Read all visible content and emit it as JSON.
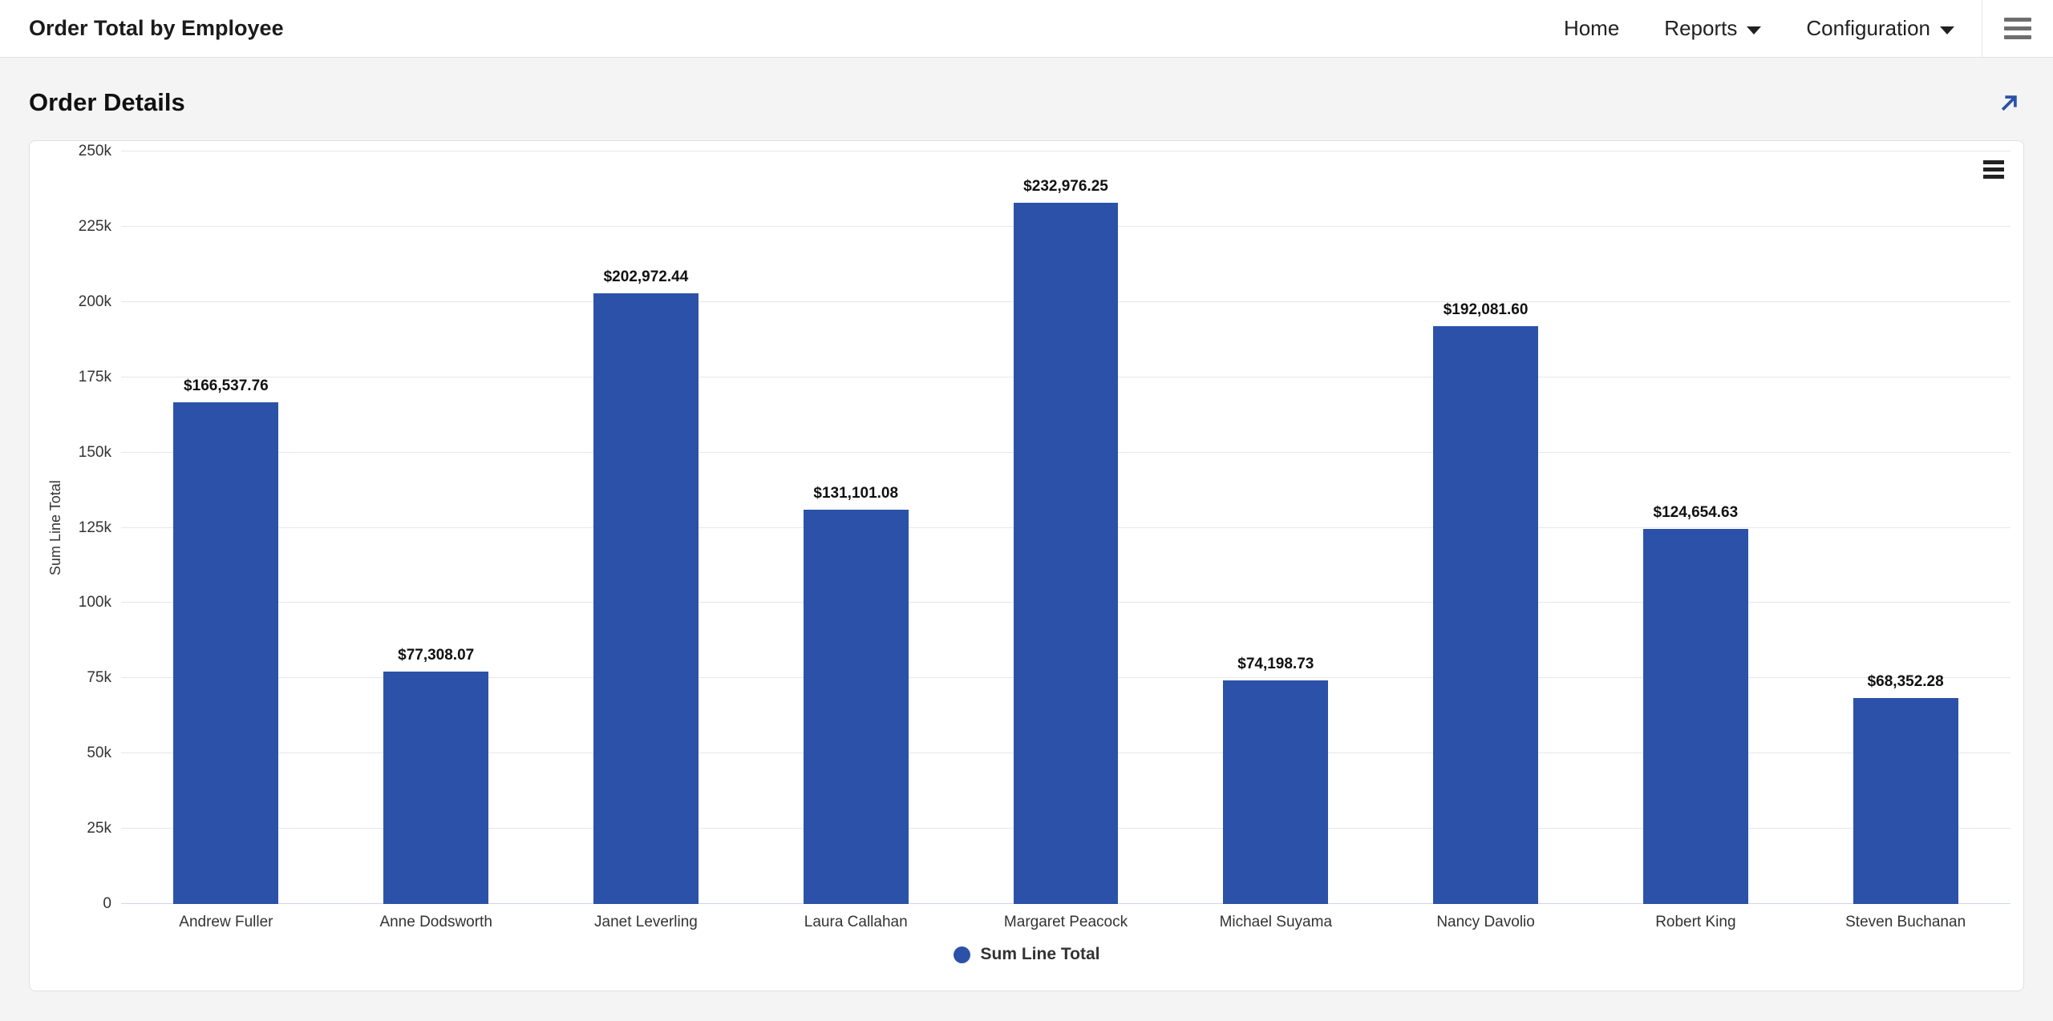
{
  "navbar": {
    "title": "Order Total by Employee",
    "items": [
      {
        "label": "Home",
        "caret": false
      },
      {
        "label": "Reports",
        "caret": true
      },
      {
        "label": "Configuration",
        "caret": true
      }
    ]
  },
  "section": {
    "title": "Order Details"
  },
  "chart_data": {
    "type": "bar",
    "title": "",
    "categories": [
      "Andrew Fuller",
      "Anne Dodsworth",
      "Janet Leverling",
      "Laura Callahan",
      "Margaret Peacock",
      "Michael Suyama",
      "Nancy Davolio",
      "Robert King",
      "Steven Buchanan"
    ],
    "series": [
      {
        "name": "Sum Line Total",
        "values": [
          166537.76,
          77308.07,
          202972.44,
          131101.08,
          232976.25,
          74198.73,
          192081.6,
          124654.63,
          68352.28
        ],
        "data_labels": [
          "$166,537.76",
          "$77,308.07",
          "$202,972.44",
          "$131,101.08",
          "$232,976.25",
          "$74,198.73",
          "$192,081.60",
          "$124,654.63",
          "$68,352.28"
        ],
        "color": "#2b52a8"
      }
    ],
    "xlabel": "",
    "ylabel": "Sum Line Total",
    "ylim": [
      0,
      250000
    ],
    "ytick_step": 25000,
    "ytick_labels": [
      "0",
      "25k",
      "50k",
      "75k",
      "100k",
      "125k",
      "150k",
      "175k",
      "200k",
      "225k",
      "250k"
    ],
    "grid": "horizontal",
    "legend": {
      "position": "bottom",
      "items": [
        {
          "label": "Sum Line Total",
          "color": "#2b52a8"
        }
      ]
    }
  },
  "colors": {
    "bar": "#2b52a8",
    "accent": "#2b52a8",
    "page_bg": "#f4f4f5",
    "grid_line": "#e7e7e7",
    "axis_line": "#ccd6eb"
  }
}
